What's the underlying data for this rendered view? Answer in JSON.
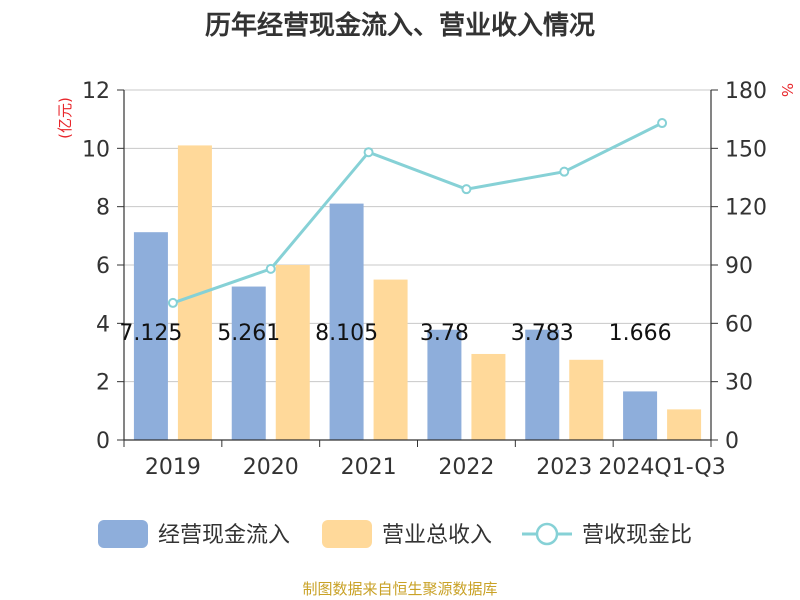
{
  "title": "历年经营现金流入、营业收入情况",
  "source": "制图数据来自恒生聚源数据库",
  "colors": {
    "cash": "#8eaedb",
    "revenue": "#ffd99a",
    "ratio": "#86d1d6",
    "grid": "#c8c8c8",
    "axis": "#333333",
    "unit": "#e8262b",
    "source": "#c9a227"
  },
  "chart_data": {
    "type": "bar",
    "title": "历年经营现金流入、营业收入情况",
    "categories": [
      "2019",
      "2020",
      "2021",
      "2022",
      "2023",
      "2024Q1-Q3"
    ],
    "y_left": {
      "unit_label": "(亿元)",
      "range": [
        0,
        12
      ],
      "ticks": [
        "0",
        "2",
        "4",
        "6",
        "8",
        "10",
        "12"
      ]
    },
    "y_right": {
      "unit_label": "%",
      "range": [
        0,
        180
      ],
      "ticks": [
        "0",
        "30",
        "60",
        "90",
        "120",
        "150",
        "180"
      ]
    },
    "grid": true,
    "legend_position": "bottom",
    "series": [
      {
        "name": "经营现金流入",
        "type": "bar",
        "axis": "left",
        "values": [
          7.125,
          5.261,
          8.105,
          3.78,
          3.783,
          1.666
        ],
        "labels": [
          "7.125",
          "5.261",
          "8.105",
          "3.78",
          "3.783",
          "1.666"
        ]
      },
      {
        "name": "营业总收入",
        "type": "bar",
        "axis": "left",
        "values": [
          10.1,
          6.0,
          5.5,
          2.95,
          2.75,
          1.05
        ]
      },
      {
        "name": "营收现金比",
        "type": "line",
        "axis": "right",
        "values": [
          70.5,
          88.0,
          148.0,
          129.0,
          138.0,
          163.0
        ]
      }
    ]
  }
}
